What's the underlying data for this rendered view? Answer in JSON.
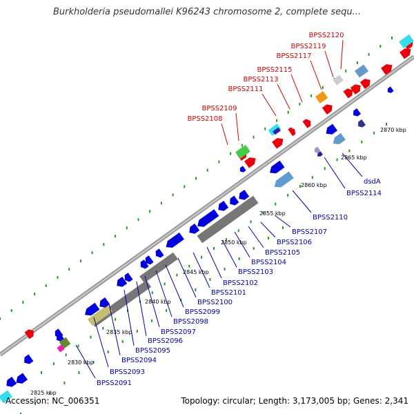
{
  "title": "Burkholderia pseudomallei K96243 chromosome 2, complete sequ...",
  "accession": "Accession: NC_006351",
  "summary": "Topology: circular; Length: 3,173,005 bp; Genes: 2,341",
  "colors": {
    "forward": "#e8000b",
    "reverse": "#0000dd",
    "backbone": "#888888",
    "tick": "#229922",
    "label_red": "#cc0000",
    "label_blue": "#0000aa",
    "feature_gray": "#777777"
  },
  "kbp_ticks": [
    "2825 kbp",
    "2830 kbp",
    "2835 kbp",
    "2840 kbp",
    "2845 kbp",
    "2850 kbp",
    "2855 kbp",
    "2860 kbp",
    "2865 kbp",
    "2870 kbp"
  ],
  "red_labels": [
    "BPSS2120",
    "BPSS2119",
    "BPSS2117",
    "BPSS2115",
    "BPSS2113",
    "BPSS2111",
    "BPSS2109",
    "BPSS2108"
  ],
  "blue_labels": [
    "dsdA",
    "BPSS2114",
    "BPSS2110",
    "BPSS2107",
    "BPSS2106",
    "BPSS2105",
    "BPSS2104",
    "BPSS2103",
    "BPSS2102",
    "BPSS2101",
    "BPSS2100",
    "BPSS2099",
    "BPSS2098",
    "BPSS2097",
    "BPSS2096",
    "BPSS2095",
    "BPSS2094",
    "BPSS2093",
    "BPSS2091"
  ]
}
